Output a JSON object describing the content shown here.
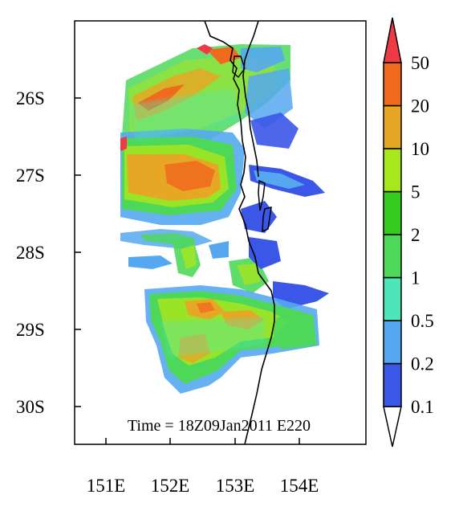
{
  "map": {
    "annotation": "Time = 18Z09Jan2011 E220",
    "lat_ticks": [
      "26S",
      "27S",
      "28S",
      "29S",
      "30S"
    ],
    "lon_ticks": [
      "151E",
      "152E",
      "153E",
      "154E"
    ],
    "extent": {
      "lon_min": 150.55,
      "lon_max": 155.0,
      "lat_min": -30.5,
      "lat_max": -25.05
    }
  },
  "colorbar": {
    "levels": [
      "0.1",
      "0.2",
      "0.5",
      "1",
      "2",
      "5",
      "10",
      "20",
      "50"
    ],
    "colors": [
      "#ffffff",
      "#3b57e8",
      "#55a8f0",
      "#4ee6b8",
      "#4ed85a",
      "#36cc1e",
      "#a8e61e",
      "#e6a824",
      "#f06a1e",
      "#ee3a44"
    ]
  }
}
